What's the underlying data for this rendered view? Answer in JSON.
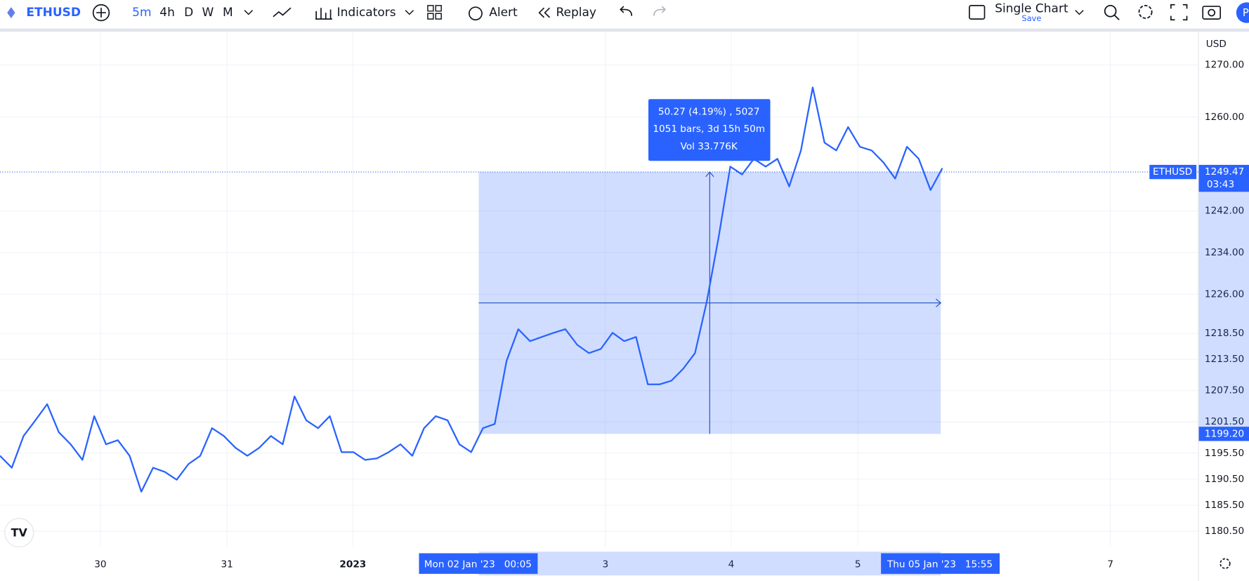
{
  "toolbar": {
    "symbol": "ETHUSD",
    "intervals": [
      "5m",
      "4h",
      "D",
      "W",
      "M"
    ],
    "indicators": "Indicators",
    "alert": "Alert",
    "replay": "Replay",
    "layout": "Single Chart",
    "save": "Save",
    "avatar": "P"
  },
  "chart_data": {
    "type": "line",
    "currency": "USD",
    "series": [
      {
        "name": "ETHUSD",
        "color": "#2962ff",
        "values": [
          1195.0,
          1192.7,
          1198.8,
          1201.8,
          1204.9,
          1199.5,
          1197.2,
          1194.2,
          1202.6,
          1197.2,
          1198.0,
          1195.0,
          1188.1,
          1192.7,
          1191.9,
          1190.4,
          1193.4,
          1195.0,
          1200.3,
          1198.8,
          1196.5,
          1195.0,
          1196.5,
          1198.8,
          1197.2,
          1206.4,
          1201.8,
          1200.3,
          1202.6,
          1195.7,
          1195.7,
          1194.2,
          1194.5,
          1195.7,
          1197.2,
          1195.0,
          1200.3,
          1202.6,
          1201.8,
          1197.2,
          1195.7,
          1200.3,
          1201.1,
          1213.2,
          1219.3,
          1217.0,
          1217.8,
          1218.6,
          1219.3,
          1216.3,
          1214.7,
          1215.5,
          1218.6,
          1217.0,
          1217.8,
          1208.7,
          1208.7,
          1209.4,
          1211.7,
          1214.7,
          1224.6,
          1236.8,
          1250.5,
          1249.0,
          1252.0,
          1250.5,
          1252.0,
          1246.7,
          1253.6,
          1265.7,
          1255.1,
          1253.6,
          1258.1,
          1254.3,
          1253.6,
          1251.3,
          1248.2,
          1254.3,
          1252.0,
          1246.0,
          1250.2
        ]
      }
    ],
    "ylim": [
      1177.5,
      1276.4
    ],
    "yticks": [
      {
        "value": 1270,
        "label": "1270.00"
      },
      {
        "value": 1260,
        "label": "1260.00"
      },
      {
        "value": 1242,
        "label": "1242.00"
      },
      {
        "value": 1234,
        "label": "1234.00"
      },
      {
        "value": 1226,
        "label": "1226.00"
      },
      {
        "value": 1218.5,
        "label": "1218.50"
      },
      {
        "value": 1213.5,
        "label": "1213.50"
      },
      {
        "value": 1207.5,
        "label": "1207.50"
      },
      {
        "value": 1201.5,
        "label": "1201.50"
      },
      {
        "value": 1195.5,
        "label": "1195.50"
      },
      {
        "value": 1190.5,
        "label": "1190.50"
      },
      {
        "value": 1185.5,
        "label": "1185.50"
      },
      {
        "value": 1180.5,
        "label": "1180.50"
      }
    ],
    "x_axis_labels": [
      "30",
      "31",
      "2023",
      "3",
      "4",
      "5",
      "7"
    ],
    "last_price": {
      "name": "ETHUSD",
      "value": 1249.47,
      "countdown": "03:43"
    },
    "measure": {
      "low": {
        "value": 1199.2,
        "label": "1199.20"
      },
      "lines": [
        "50.27 (4.19%) , 5027",
        "1051 bars, 3d 15h 50m",
        "Vol 33.776K"
      ],
      "start": "Mon 02 Jan '23   00:05",
      "end": "Thu 05 Jan '23   15:55"
    }
  }
}
